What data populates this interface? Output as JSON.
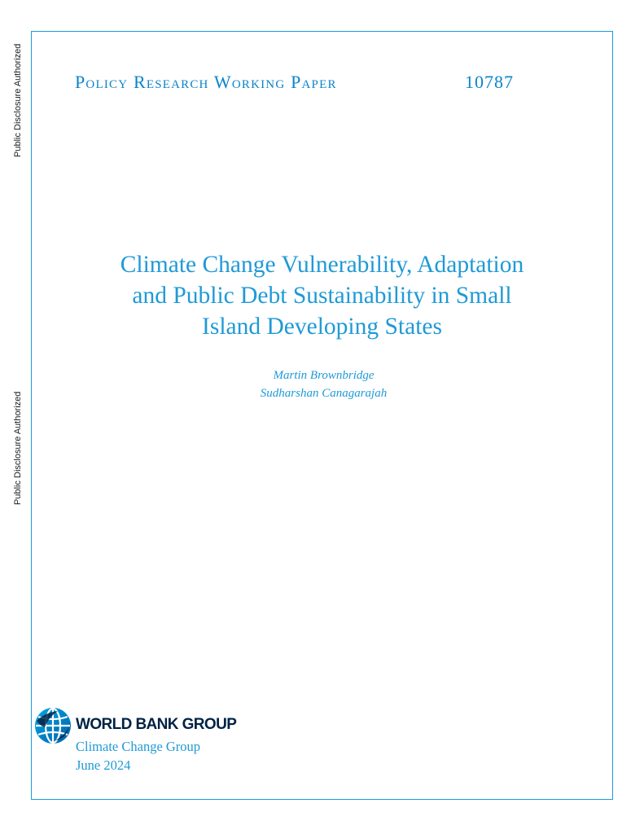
{
  "side_notes": {
    "top": "Public Disclosure Authorized",
    "middle": "Public Disclosure Authorized"
  },
  "series": {
    "name": "Policy Research Working Paper",
    "number": "10787"
  },
  "title_lines": [
    "Climate Change Vulnerability, Adaptation",
    "and Public Debt Sustainability in Small",
    "Island Developing States"
  ],
  "authors": [
    "Martin Brownbridge",
    "Sudharshan Canagarajah"
  ],
  "publisher": {
    "logo_text": "WORLD BANK GROUP",
    "logo_icon": "globe-icon",
    "group": "Climate Change Group",
    "date": "June 2024"
  },
  "colors": {
    "accent": "#1f9ad6",
    "series": "#0a84c9",
    "logo_dark": "#002244"
  }
}
